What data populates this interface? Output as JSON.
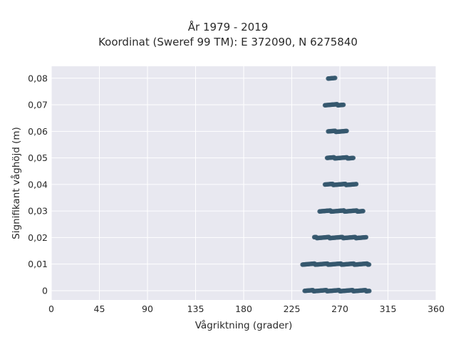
{
  "chart_data": {
    "type": "scatter",
    "title_lines": [
      "År 1979 - 2019",
      "Koordinat (Sweref 99 TM): E 372090, N 6275840"
    ],
    "xlabel": "Vågriktning (grader)",
    "ylabel": "Signifikant våghöjd (m)",
    "xlim": [
      0,
      360
    ],
    "ylim": [
      -0.0035,
      0.0845
    ],
    "x_ticks": [
      0,
      45,
      90,
      135,
      180,
      225,
      270,
      315,
      360
    ],
    "x_tick_labels": [
      "0",
      "45",
      "90",
      "135",
      "180",
      "225",
      "270",
      "315",
      "360"
    ],
    "y_ticks": [
      0,
      0.01,
      0.02,
      0.03,
      0.04,
      0.05,
      0.06,
      0.07,
      0.08
    ],
    "y_tick_labels": [
      "0",
      "0,01",
      "0,02",
      "0,03",
      "0,04",
      "0,05",
      "0,06",
      "0,07",
      "0,08"
    ],
    "grid": true,
    "legend": "none",
    "point_color": "#36586e",
    "background_color": "#e8e8f0",
    "series": [
      {
        "bands": [
          {
            "y": 0.0,
            "x_min": 237,
            "x_max": 298
          },
          {
            "y": 0.01,
            "x_min": 235,
            "x_max": 298
          },
          {
            "y": 0.02,
            "x_min": 246,
            "x_max": 295
          },
          {
            "y": 0.03,
            "x_min": 251,
            "x_max": 292
          },
          {
            "y": 0.04,
            "x_min": 256,
            "x_max": 286
          },
          {
            "y": 0.05,
            "x_min": 258,
            "x_max": 283
          },
          {
            "y": 0.06,
            "x_min": 259,
            "x_max": 277
          },
          {
            "y": 0.07,
            "x_min": 256,
            "x_max": 274
          },
          {
            "y": 0.08,
            "x_min": 259,
            "x_max": 266
          }
        ]
      }
    ]
  }
}
